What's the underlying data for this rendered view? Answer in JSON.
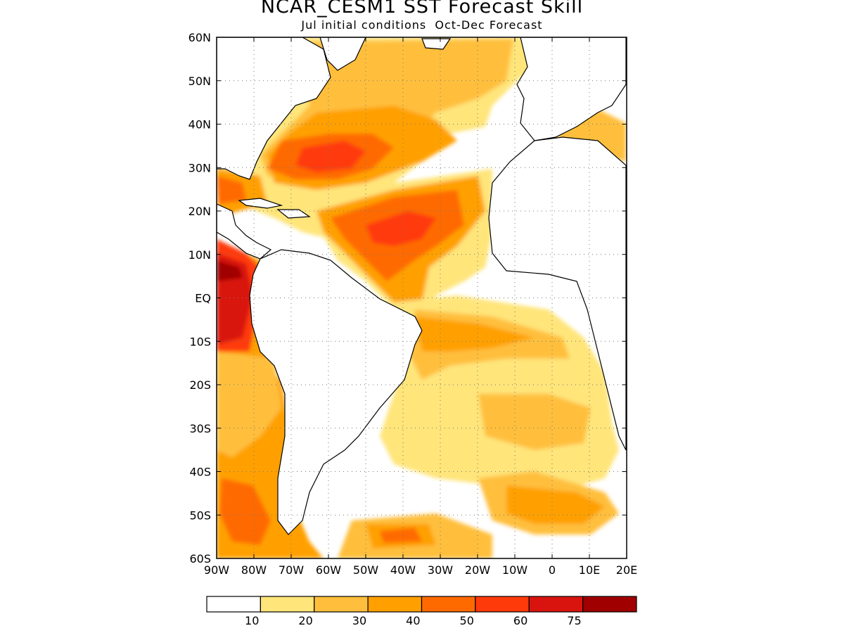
{
  "title": "NCAR_CESM1 SST Forecast Skill",
  "subtitle": "Jul initial conditions  Oct-Dec Forecast",
  "lat_labels": [
    "60N",
    "50N",
    "40N",
    "30N",
    "20N",
    "10N",
    "EQ",
    "10S",
    "20S",
    "30S",
    "40S",
    "50S",
    "60S"
  ],
  "lon_labels": [
    "90W",
    "80W",
    "70W",
    "60W",
    "50W",
    "40W",
    "30W",
    "20W",
    "10W",
    "0",
    "10E",
    "20E"
  ],
  "map": {
    "lon_range": [
      -90,
      20
    ],
    "lat_range": [
      -60,
      60
    ],
    "variable": "SST Forecast Skill",
    "land_color": "#ffffff",
    "coastline_color": "#000000",
    "grid": "dotted, 10 degree",
    "colors": [
      "#ffffff",
      "#ffe57a",
      "#ffbf3c",
      "#ffa000",
      "#ff6a00",
      "#ff3a0a",
      "#d9140e",
      "#a00000"
    ]
  },
  "colorbar": {
    "thresholds": [
      "10",
      "20",
      "30",
      "40",
      "50",
      "60",
      "75"
    ]
  }
}
